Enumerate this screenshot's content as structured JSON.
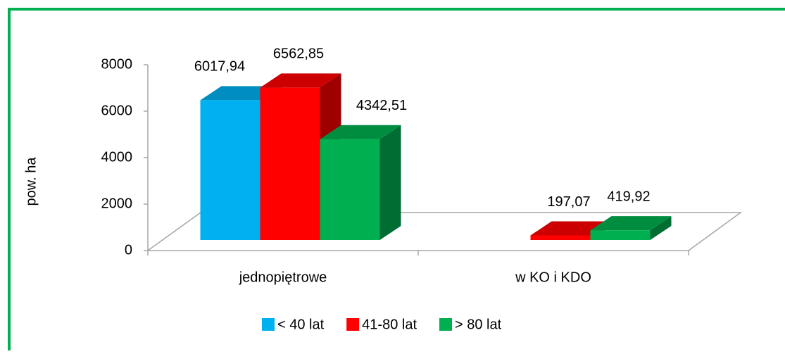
{
  "chart_data": {
    "type": "bar3d",
    "y_label": "pow. ha",
    "categories": [
      "jednopiętrowe",
      "w KO i KDO"
    ],
    "series": [
      {
        "name": "< 40 lat",
        "color": "#00b0f0",
        "values": [
          6017.94,
          null
        ],
        "value_labels": [
          "6017,94",
          null
        ]
      },
      {
        "name": "41-80 lat",
        "color": "#ff0000",
        "values": [
          6562.85,
          197.07
        ],
        "value_labels": [
          "6562,85",
          "197,07"
        ]
      },
      {
        "name": "> 80 lat",
        "color": "#00b050",
        "values": [
          4342.51,
          419.92
        ],
        "value_labels": [
          "4342,51",
          "419,92"
        ]
      }
    ],
    "ylim": [
      0,
      8000
    ],
    "yticks": [
      0,
      2000,
      4000,
      6000,
      8000
    ],
    "legend": "bottom"
  }
}
